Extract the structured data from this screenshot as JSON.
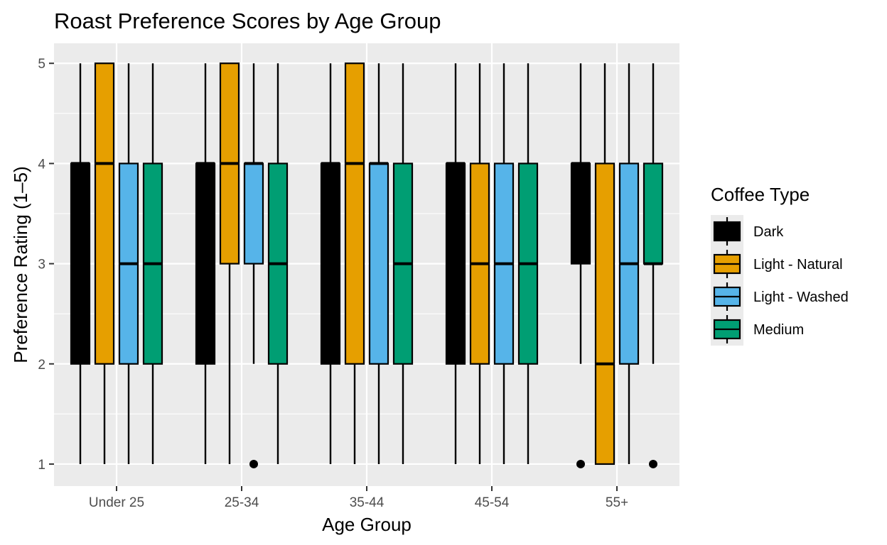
{
  "chart_data": {
    "type": "boxplot",
    "title": "Roast Preference Scores by Age Group",
    "xlabel": "Age Group",
    "ylabel": "Preference Rating (1–5)",
    "ylim": [
      0.78,
      5.2
    ],
    "yticks": [
      1,
      2,
      3,
      4,
      5
    ],
    "grid": true,
    "legend_position": "right",
    "legend_title": "Coffee Type",
    "categories": [
      "Under 25",
      "25-34",
      "35-44",
      "45-54",
      "55+"
    ],
    "series": [
      {
        "name": "Dark",
        "color": "#000000",
        "boxes": [
          {
            "min": 1,
            "q1": 2,
            "median": 4,
            "q3": 4,
            "max": 5,
            "outliers": []
          },
          {
            "min": 1,
            "q1": 2,
            "median": 4,
            "q3": 4,
            "max": 5,
            "outliers": []
          },
          {
            "min": 1,
            "q1": 2,
            "median": 4,
            "q3": 4,
            "max": 5,
            "outliers": []
          },
          {
            "min": 1,
            "q1": 2,
            "median": 4,
            "q3": 4,
            "max": 5,
            "outliers": []
          },
          {
            "min": 2,
            "q1": 3,
            "median": 4,
            "q3": 4,
            "max": 5,
            "outliers": [
              1
            ]
          }
        ]
      },
      {
        "name": "Light - Natural",
        "color": "#E69F00",
        "boxes": [
          {
            "min": 1,
            "q1": 2,
            "median": 4,
            "q3": 5,
            "max": 5,
            "outliers": []
          },
          {
            "min": 1,
            "q1": 3,
            "median": 4,
            "q3": 5,
            "max": 5,
            "outliers": []
          },
          {
            "min": 1,
            "q1": 2,
            "median": 4,
            "q3": 5,
            "max": 5,
            "outliers": []
          },
          {
            "min": 1,
            "q1": 2,
            "median": 3,
            "q3": 4,
            "max": 5,
            "outliers": []
          },
          {
            "min": 1,
            "q1": 1,
            "median": 2,
            "q3": 4,
            "max": 5,
            "outliers": []
          }
        ]
      },
      {
        "name": "Light - Washed",
        "color": "#56B4E9",
        "boxes": [
          {
            "min": 1,
            "q1": 2,
            "median": 3,
            "q3": 4,
            "max": 5,
            "outliers": []
          },
          {
            "min": 2,
            "q1": 3,
            "median": 4,
            "q3": 4,
            "max": 5,
            "outliers": [
              1
            ]
          },
          {
            "min": 1,
            "q1": 2,
            "median": 4,
            "q3": 4,
            "max": 5,
            "outliers": []
          },
          {
            "min": 1,
            "q1": 2,
            "median": 3,
            "q3": 4,
            "max": 5,
            "outliers": []
          },
          {
            "min": 1,
            "q1": 2,
            "median": 3,
            "q3": 4,
            "max": 5,
            "outliers": []
          }
        ]
      },
      {
        "name": "Medium",
        "color": "#009E73",
        "boxes": [
          {
            "min": 1,
            "q1": 2,
            "median": 3,
            "q3": 4,
            "max": 5,
            "outliers": []
          },
          {
            "min": 1,
            "q1": 2,
            "median": 3,
            "q3": 4,
            "max": 5,
            "outliers": []
          },
          {
            "min": 1,
            "q1": 2,
            "median": 3,
            "q3": 4,
            "max": 5,
            "outliers": []
          },
          {
            "min": 1,
            "q1": 2,
            "median": 3,
            "q3": 4,
            "max": 5,
            "outliers": []
          },
          {
            "min": 2,
            "q1": 3,
            "median": 3,
            "q3": 4,
            "max": 5,
            "outliers": [
              1
            ]
          }
        ]
      }
    ]
  }
}
